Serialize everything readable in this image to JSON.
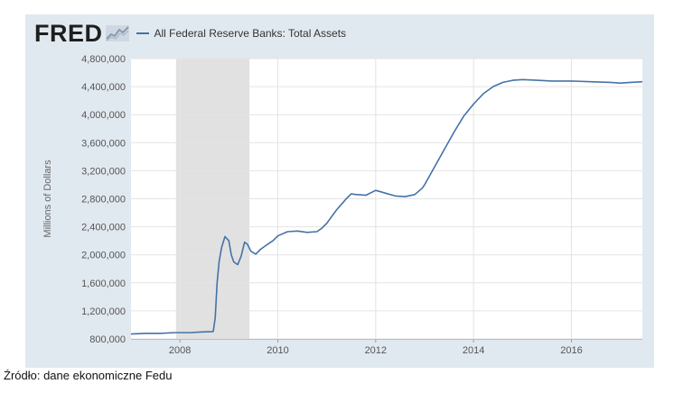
{
  "header": {
    "logo_text": "FRED",
    "legend_label": "All Federal Reserve Banks: Total Assets",
    "series_color": "#4572a7"
  },
  "caption": "Źródło: dane ekonomiczne Fedu",
  "chart_data": {
    "type": "line",
    "title": "",
    "legend": [
      "All Federal Reserve Banks: Total Assets"
    ],
    "ylabel": "Millions of Dollars",
    "xlabel": "",
    "xlim": [
      2007.0,
      2017.45
    ],
    "ylim": [
      800000,
      4800000
    ],
    "xticks": [
      2008,
      2010,
      2012,
      2014,
      2016
    ],
    "xtick_labels": [
      "2008",
      "2010",
      "2012",
      "2014",
      "2016"
    ],
    "yticks": [
      800000,
      1200000,
      1600000,
      2000000,
      2400000,
      2800000,
      3200000,
      3600000,
      4000000,
      4400000,
      4800000
    ],
    "ytick_labels": [
      "800,000",
      "1,200,000",
      "1,600,000",
      "2,000,000",
      "2,400,000",
      "2,800,000",
      "3,200,000",
      "3,600,000",
      "4,000,000",
      "4,400,000",
      "4,800,000"
    ],
    "recession": [
      2007.92,
      2009.42
    ],
    "series": [
      {
        "name": "All Federal Reserve Banks: Total Assets",
        "x": [
          2007.0,
          2007.3,
          2007.6,
          2007.9,
          2008.2,
          2008.5,
          2008.68,
          2008.72,
          2008.76,
          2008.8,
          2008.85,
          2008.92,
          2009.0,
          2009.05,
          2009.1,
          2009.18,
          2009.25,
          2009.32,
          2009.38,
          2009.45,
          2009.55,
          2009.65,
          2009.75,
          2009.9,
          2010.0,
          2010.2,
          2010.4,
          2010.6,
          2010.8,
          2010.9,
          2011.0,
          2011.2,
          2011.4,
          2011.5,
          2011.6,
          2011.8,
          2012.0,
          2012.1,
          2012.2,
          2012.4,
          2012.6,
          2012.8,
          2012.95,
          2013.0,
          2013.2,
          2013.4,
          2013.6,
          2013.8,
          2014.0,
          2014.2,
          2014.4,
          2014.6,
          2014.8,
          2015.0,
          2015.3,
          2015.6,
          2016.0,
          2016.4,
          2016.8,
          2017.0,
          2017.2,
          2017.45
        ],
        "values": [
          870000,
          880000,
          880000,
          890000,
          890000,
          900000,
          905000,
          1100000,
          1600000,
          1900000,
          2100000,
          2260000,
          2200000,
          2000000,
          1900000,
          1860000,
          1980000,
          2180000,
          2150000,
          2050000,
          2010000,
          2080000,
          2130000,
          2200000,
          2270000,
          2330000,
          2340000,
          2320000,
          2330000,
          2380000,
          2450000,
          2640000,
          2800000,
          2870000,
          2860000,
          2850000,
          2920000,
          2900000,
          2880000,
          2840000,
          2830000,
          2860000,
          2950000,
          3000000,
          3250000,
          3500000,
          3750000,
          3980000,
          4150000,
          4300000,
          4400000,
          4460000,
          4490000,
          4500000,
          4490000,
          4480000,
          4480000,
          4470000,
          4460000,
          4450000,
          4460000,
          4470000
        ]
      }
    ]
  }
}
